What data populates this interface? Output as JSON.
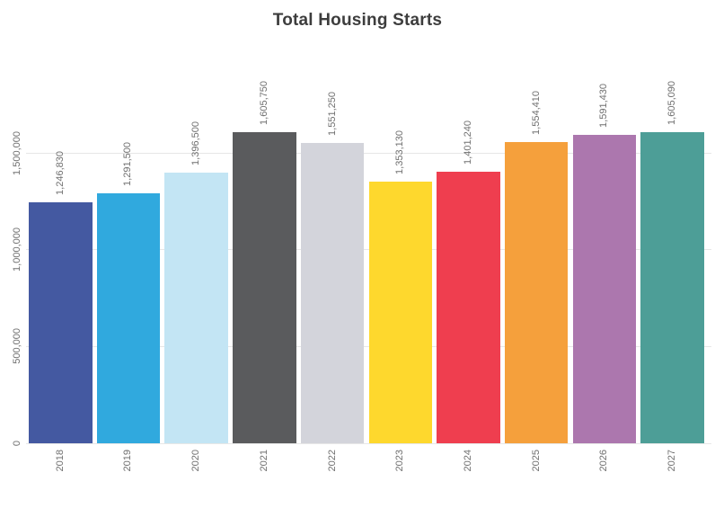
{
  "title": "Total Housing Starts",
  "chart_data": {
    "type": "bar",
    "title": "Total Housing Starts",
    "xlabel": "",
    "ylabel": "",
    "categories": [
      "2018",
      "2019",
      "2020",
      "2021",
      "2022",
      "2023",
      "2024",
      "2025",
      "2026",
      "2027"
    ],
    "values": [
      1246830,
      1291500,
      1396500,
      1605750,
      1551250,
      1353130,
      1401240,
      1554410,
      1591430,
      1605090
    ],
    "value_labels": [
      "1,246,830",
      "1,291,500",
      "1,396,500",
      "1,605,750",
      "1,551,250",
      "1,353,130",
      "1,401,240",
      "1,554,410",
      "1,591,430",
      "1,605,090"
    ],
    "bar_colors": [
      "#4459A1",
      "#30A9DE",
      "#C3E5F4",
      "#5A5B5D",
      "#D3D4DB",
      "#FED82D",
      "#EF3E4F",
      "#F5A03C",
      "#AC77AE",
      "#4D9E97"
    ],
    "yticks": [
      {
        "value": 0,
        "label": "0"
      },
      {
        "value": 500000,
        "label": "500,000"
      },
      {
        "value": 1000000,
        "label": "1,000,000"
      },
      {
        "value": 1500000,
        "label": "1,500,000"
      }
    ],
    "ylim": [
      0,
      1700000
    ],
    "grid": "horizontal",
    "legend": "none",
    "bar_label_rotation": 90,
    "x_tick_rotation": 90
  },
  "colors": {
    "title": "#3D3D3D",
    "axis_label": "#707070",
    "gridline": "#E7E7E7",
    "background": "#FFFFFF"
  }
}
